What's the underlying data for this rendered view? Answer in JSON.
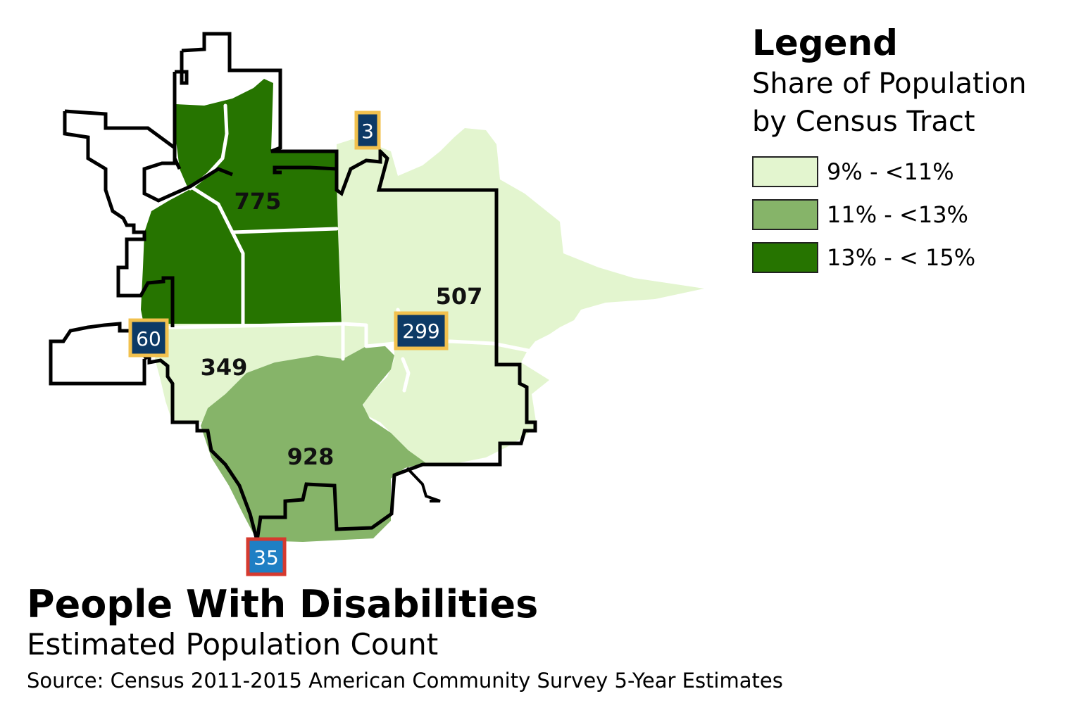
{
  "legend": {
    "title": "Legend",
    "subtitle_line1": "Share of Population",
    "subtitle_line2": "by Census Tract",
    "classes": [
      {
        "label": "9% - <11%",
        "color": "#e3f5cf"
      },
      {
        "label": "11% - <13%",
        "color": "#86b469"
      },
      {
        "label": "13% - < 15%",
        "color": "#267400"
      }
    ]
  },
  "tracts": [
    {
      "id": "tract-775",
      "label": "775",
      "class": "13% - < 15%"
    },
    {
      "id": "tract-507",
      "label": "507",
      "class": "9% - <11%"
    },
    {
      "id": "tract-349",
      "label": "349",
      "class": "9% - <11%"
    },
    {
      "id": "tract-928",
      "label": "928",
      "class": "11% - <13%"
    }
  ],
  "highway_shields": [
    {
      "number": "3",
      "type": "state"
    },
    {
      "number": "60",
      "type": "state"
    },
    {
      "number": "299",
      "type": "state"
    },
    {
      "number": "35",
      "type": "interstate"
    }
  ],
  "colors": {
    "shield_state_fill": "#0d3a66",
    "shield_state_border": "#f2c14e",
    "shield_interstate_fill": "#1f7fc4",
    "shield_interstate_border": "#d63a2f",
    "boundary": "#000000",
    "road": "#ffffff"
  },
  "title": "People With Disabilities",
  "subtitle": "Estimated Population Count",
  "source": "Source: Census 2011-2015 American Community Survey 5-Year Estimates"
}
